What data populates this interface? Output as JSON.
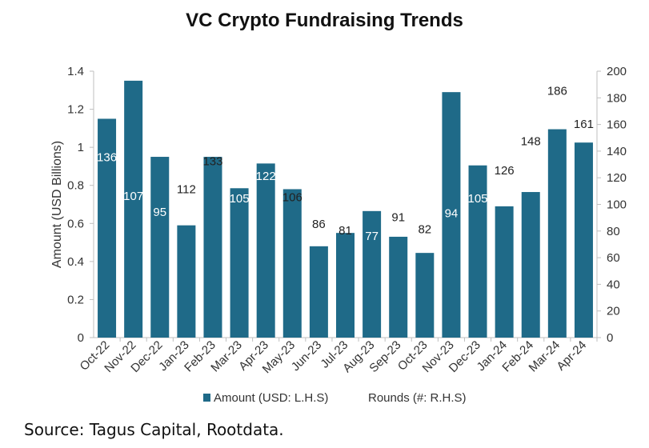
{
  "title": "VC Crypto Fundraising Trends",
  "source": "Source: Tagus Capital, Rootdata.",
  "colors": {
    "bar": "#1F6A88",
    "axis": "#bfbfbf",
    "text": "#333333",
    "label_on_bar": "#ffffff",
    "label_above": "#222222"
  },
  "chart_data": {
    "type": "bar",
    "categories": [
      "Oct-22",
      "Nov-22",
      "Dec-22",
      "Jan-23",
      "Feb-23",
      "Mar-23",
      "Apr-23",
      "May-23",
      "Jun-23",
      "Jul-23",
      "Aug-23",
      "Sep-23",
      "Oct-23",
      "Nov-23",
      "Dec-23",
      "Jan-24",
      "Feb-24",
      "Mar-24",
      "Apr-24"
    ],
    "series": [
      {
        "name": "Amount (USD: L.H.S)",
        "axis": "left",
        "values": [
          1.15,
          1.35,
          0.95,
          0.59,
          0.95,
          0.785,
          0.915,
          0.78,
          0.48,
          0.55,
          0.665,
          0.53,
          0.445,
          1.29,
          0.905,
          0.69,
          0.765,
          1.095,
          1.025
        ]
      },
      {
        "name": "Rounds (#: R.H.S)",
        "axis": "right",
        "values": [
          136,
          107,
          95,
          112,
          133,
          105,
          122,
          106,
          86,
          81,
          77,
          91,
          82,
          94,
          105,
          126,
          148,
          186,
          161
        ]
      }
    ],
    "ylabel": "Amount (USD Billions)",
    "ylim": [
      0,
      1.4
    ],
    "yticks": [
      "0",
      "0.2",
      "0.4",
      "0.6",
      "0.8",
      "1",
      "1.2",
      "1.4"
    ],
    "y2lim": [
      0,
      200
    ],
    "y2ticks": [
      "0",
      "20",
      "40",
      "60",
      "80",
      "100",
      "120",
      "140",
      "160",
      "180",
      "200"
    ],
    "grid": false,
    "legend_position": "bottom"
  }
}
